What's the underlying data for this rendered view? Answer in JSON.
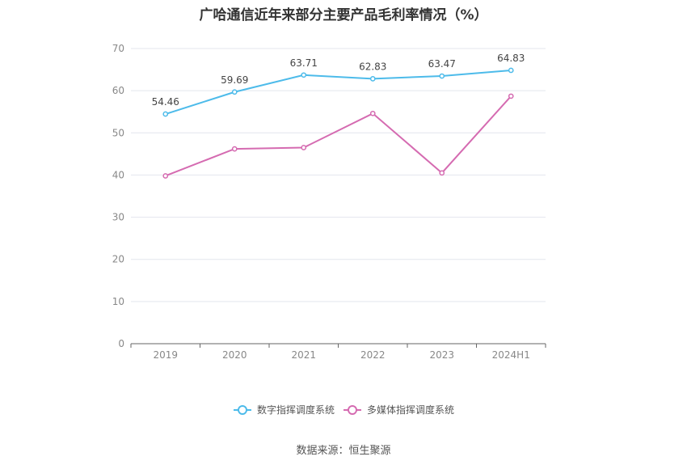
{
  "chart_data": {
    "type": "line",
    "title": "广哈通信近年来部分主要产品毛利率情况（%）",
    "categories": [
      "2019",
      "2020",
      "2021",
      "2022",
      "2023",
      "2024H1"
    ],
    "ylim": [
      0,
      70
    ],
    "yticks": [
      0,
      10,
      20,
      30,
      40,
      50,
      60,
      70
    ],
    "grid": true,
    "legend_position": "bottom",
    "series": [
      {
        "name": "数字指挥调度系统",
        "color": "#4dbbea",
        "values": [
          54.46,
          59.69,
          63.71,
          62.83,
          63.47,
          64.83
        ],
        "labels": [
          "54.46",
          "59.69",
          "63.71",
          "62.83",
          "63.47",
          "64.83"
        ]
      },
      {
        "name": "多媒体指挥调度系统",
        "color": "#d56bb1",
        "values": [
          39.8,
          46.2,
          46.5,
          54.6,
          40.5,
          58.7
        ]
      }
    ],
    "source": "数据来源：恒生聚源"
  }
}
